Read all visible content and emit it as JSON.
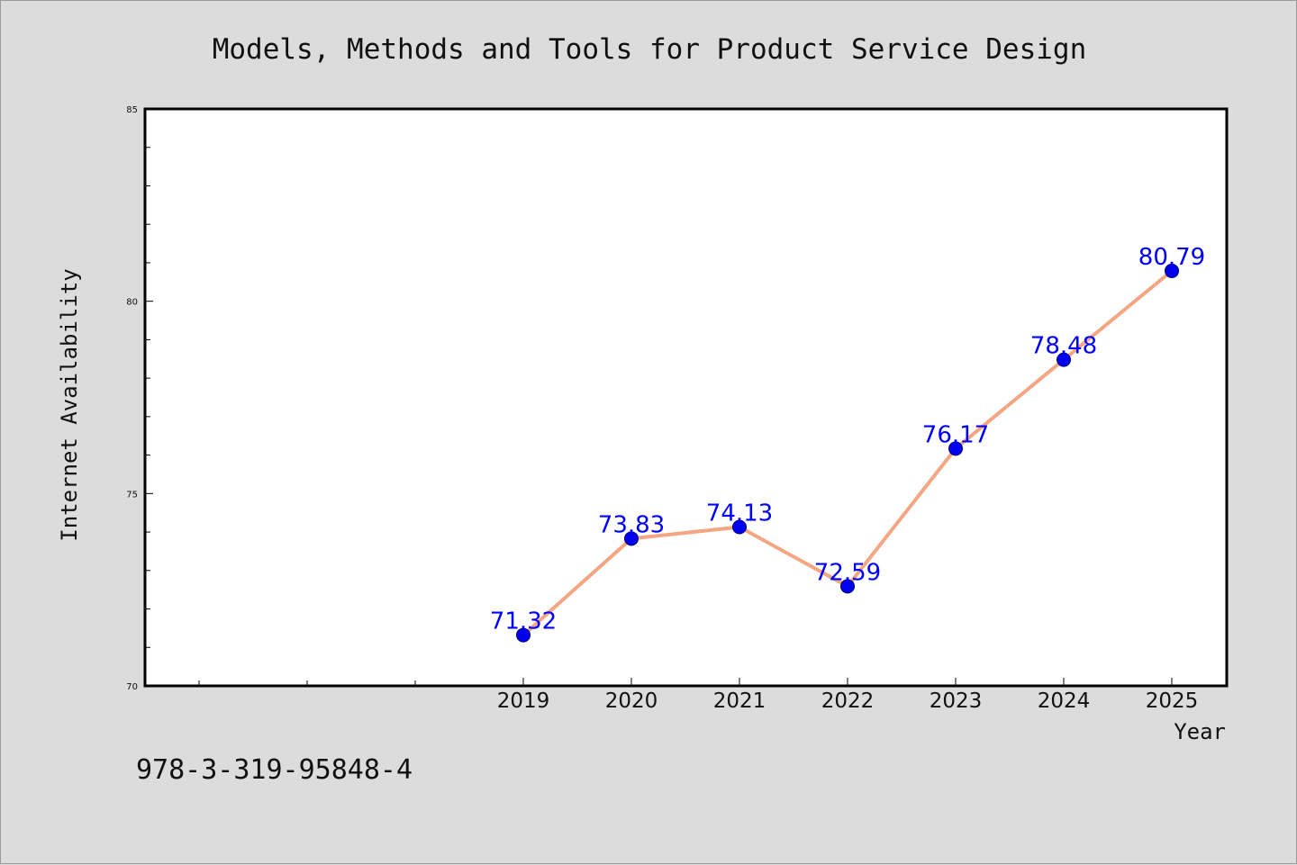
{
  "chart_data": {
    "type": "line",
    "title": "Models, Methods and Tools for Product Service Design",
    "xlabel": "Year",
    "ylabel": "Internet Availability",
    "categories": [
      "2019",
      "2020",
      "2021",
      "2022",
      "2023",
      "2024",
      "2025"
    ],
    "series": [
      {
        "values": [
          71.32,
          73.83,
          74.13,
          72.59,
          76.17,
          78.48,
          80.79
        ],
        "labels": [
          "71.32",
          "73.83",
          "74.13",
          "72.59",
          "76.17",
          "78.48",
          "80.79"
        ]
      }
    ],
    "ylim": [
      70,
      85
    ],
    "yticks": [
      70,
      75,
      80,
      85
    ],
    "ytick_labels": [
      "70",
      "75",
      "80",
      "85"
    ],
    "x_slots_before_data": 3,
    "grid": false,
    "colors": {
      "line": "#f4a582",
      "marker": "#0000ee",
      "data_label": "#0000ff",
      "plot_background": "#ffffff",
      "figure_background": "#dcdcdc"
    }
  },
  "footer": {
    "isbn": "978-3-319-95848-4"
  }
}
